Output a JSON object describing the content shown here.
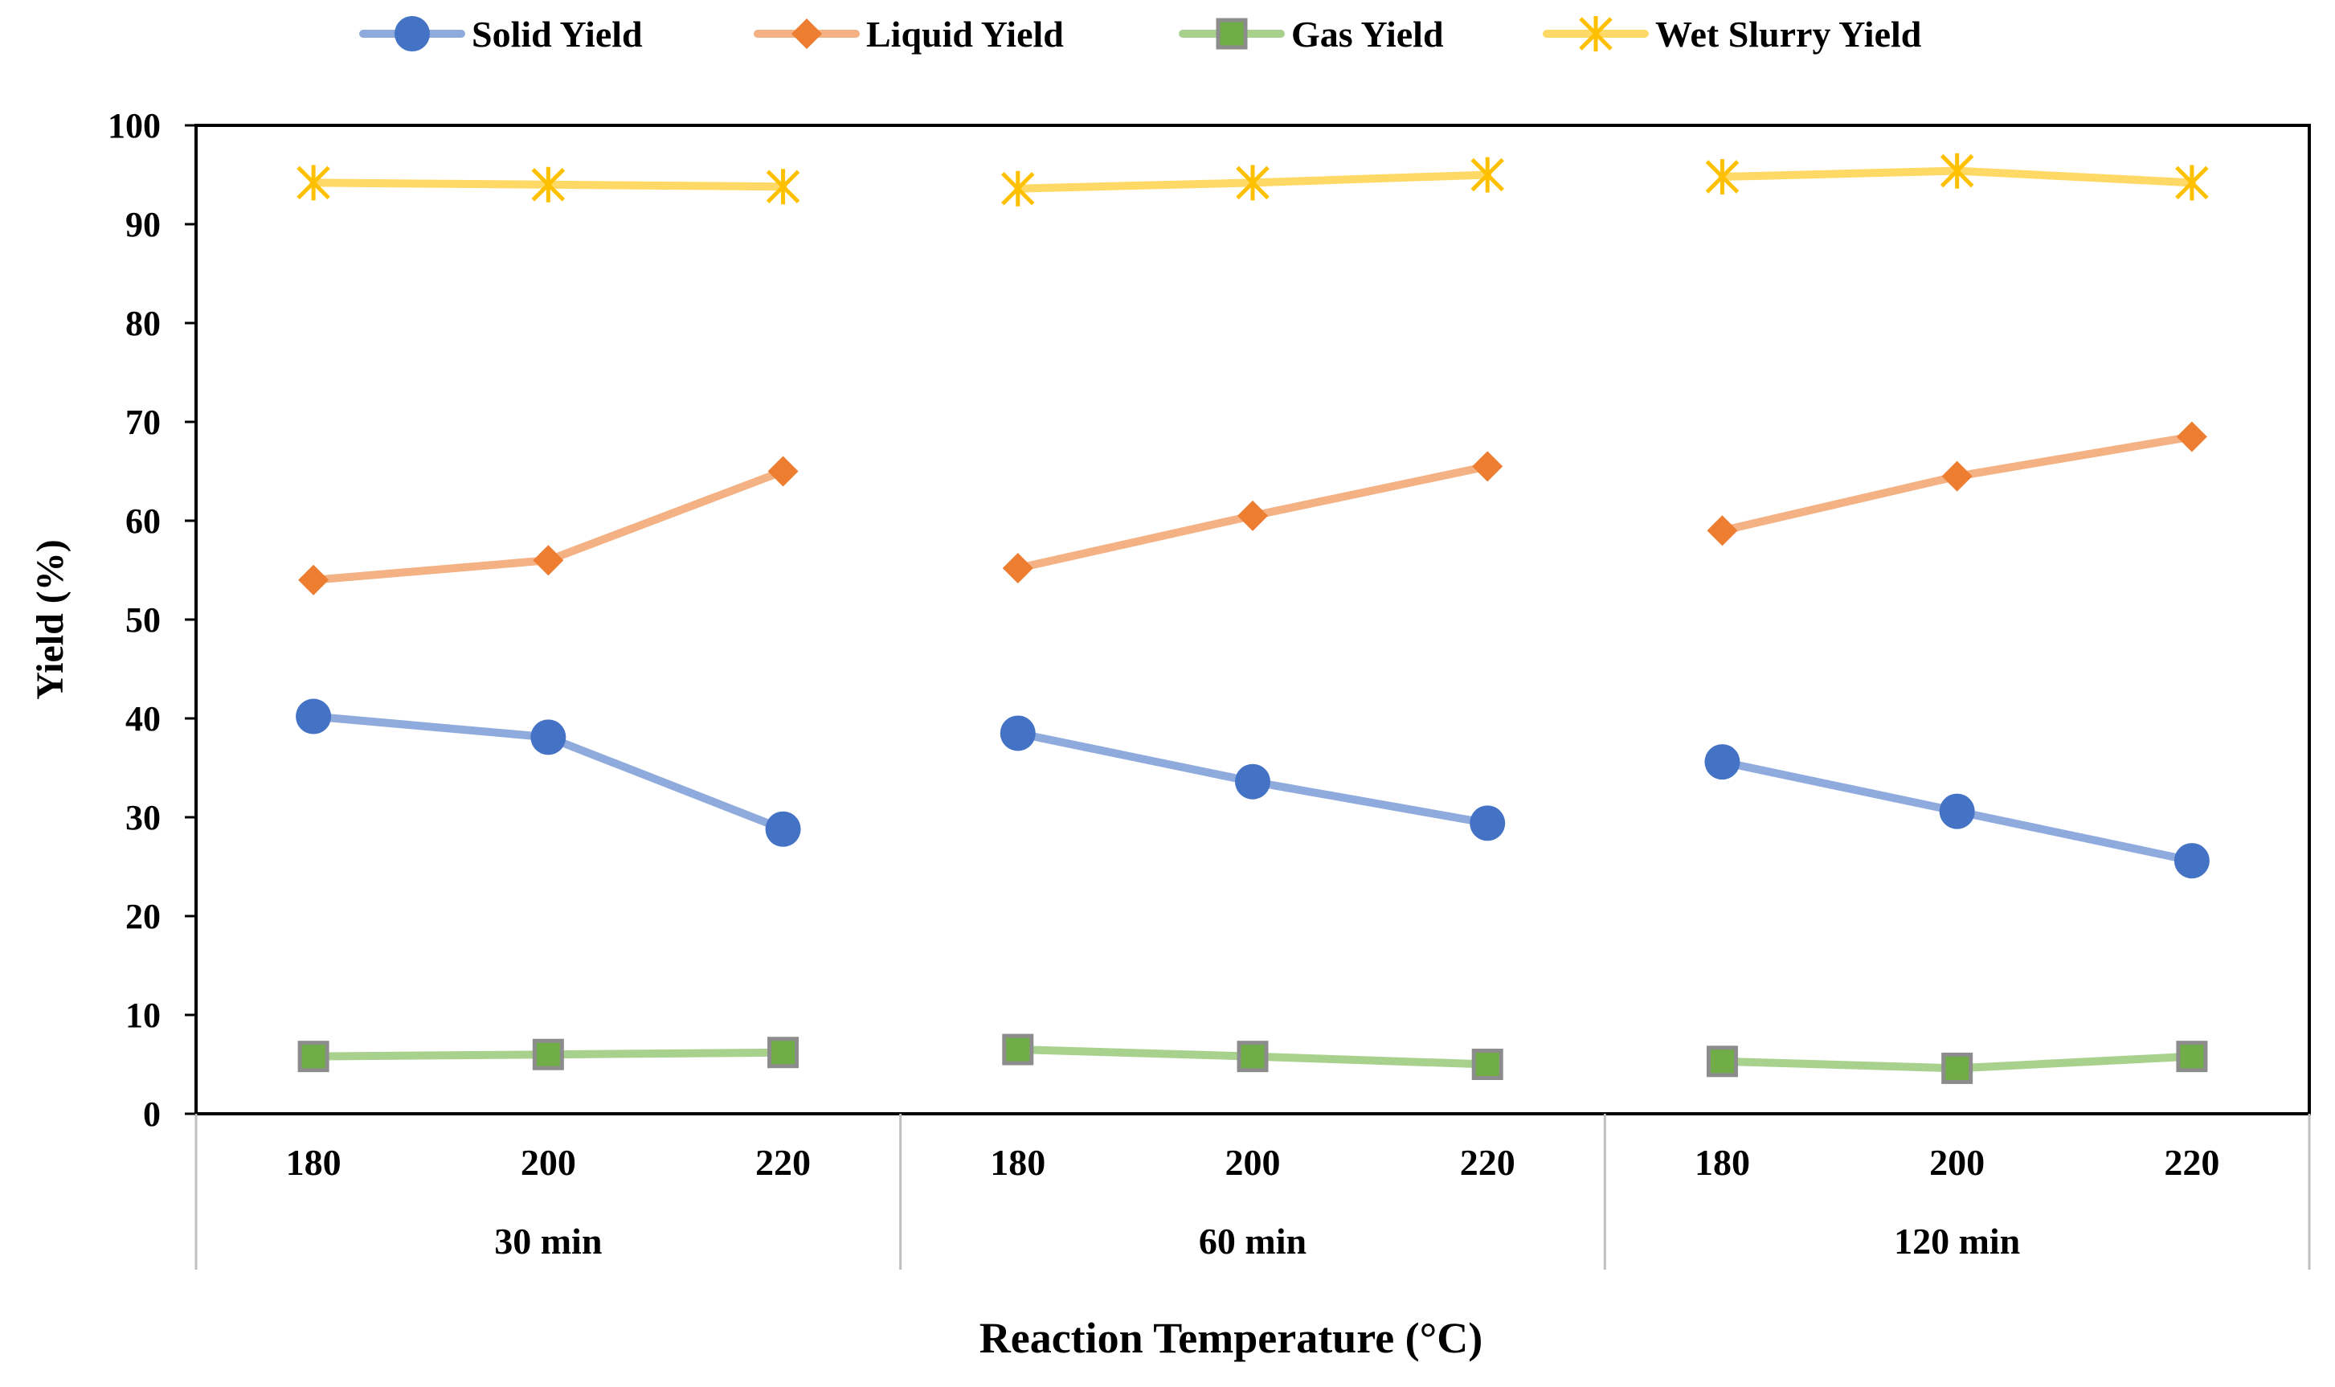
{
  "chart_data": {
    "type": "line",
    "title": "",
    "xlabel": "Reaction Temperature (°C)",
    "ylabel": "Yield (%)",
    "ylim": [
      0,
      100
    ],
    "yticks": [
      0,
      10,
      20,
      30,
      40,
      50,
      60,
      70,
      80,
      90,
      100
    ],
    "grid": false,
    "legend": "top",
    "groups": [
      {
        "label": "30 min",
        "categories": [
          "180",
          "200",
          "220"
        ]
      },
      {
        "label": "60 min",
        "categories": [
          "180",
          "200",
          "220"
        ]
      },
      {
        "label": "120 min",
        "categories": [
          "180",
          "200",
          "220"
        ]
      }
    ],
    "series": [
      {
        "name": "Solid Yield",
        "color": "#4472C4",
        "line_color": "#8FAADC",
        "marker": "circle",
        "values": [
          [
            40.2,
            38.1,
            28.8
          ],
          [
            38.5,
            33.6,
            29.4
          ],
          [
            35.6,
            30.6,
            25.6
          ]
        ]
      },
      {
        "name": "Liquid Yield",
        "color": "#ED7D31",
        "line_color": "#F4B183",
        "marker": "diamond",
        "values": [
          [
            54.0,
            56.0,
            65.0
          ],
          [
            55.2,
            60.5,
            65.5
          ],
          [
            59.0,
            64.5,
            68.5
          ]
        ]
      },
      {
        "name": "Gas Yield",
        "color": "#70AD47",
        "line_color": "#A9D18E",
        "marker": "square",
        "values": [
          [
            5.8,
            6.0,
            6.2
          ],
          [
            6.5,
            5.8,
            5.0
          ],
          [
            5.3,
            4.6,
            5.8
          ]
        ]
      },
      {
        "name": "Wet Slurry Yield",
        "color": "#FFC000",
        "line_color": "#FFD966",
        "marker": "star",
        "values": [
          [
            94.2,
            94.0,
            93.8
          ],
          [
            93.6,
            94.2,
            95.0
          ],
          [
            94.8,
            95.4,
            94.2
          ]
        ]
      }
    ]
  }
}
